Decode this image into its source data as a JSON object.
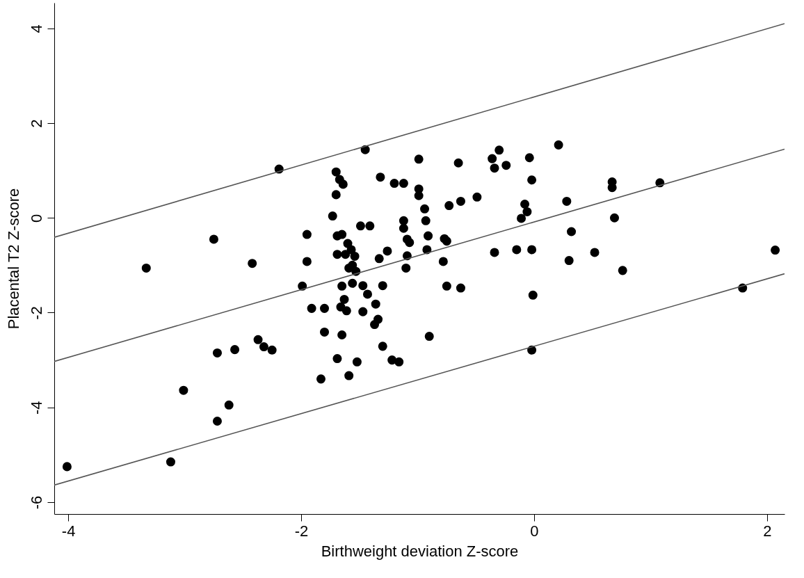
{
  "chart_data": {
    "type": "scatter",
    "xlabel": "Birthweight deviation Z-score",
    "ylabel": "Placental T2 Z-score",
    "xlim": [
      -4.12,
      2.15
    ],
    "ylim": [
      -6.25,
      4.54
    ],
    "xticks": [
      -4,
      -2,
      0,
      2
    ],
    "yticks": [
      -6,
      -4,
      -2,
      0,
      2,
      4
    ],
    "grid": false,
    "series": [
      {
        "color": "#000000",
        "marker": "circle",
        "x": [
          -4.01,
          -3.33,
          -3.12,
          -3.01,
          -2.75,
          -2.72,
          -2.72,
          -2.62,
          -2.57,
          -2.42,
          -2.37,
          -2.32,
          -2.25,
          -2.19,
          -1.99,
          -1.95,
          -1.95,
          -1.91,
          -1.83,
          -1.8,
          -1.8,
          -1.73,
          -1.7,
          -1.7,
          -1.69,
          -1.69,
          -1.69,
          -1.67,
          -1.65,
          -1.66,
          -1.65,
          -1.65,
          -1.64,
          -1.63,
          -1.62,
          -1.61,
          -1.6,
          -1.59,
          -1.59,
          -1.57,
          -1.56,
          -1.56,
          -1.53,
          -1.54,
          -1.52,
          -1.49,
          -1.47,
          -1.47,
          -1.45,
          -1.43,
          -1.41,
          -1.36,
          -1.34,
          -1.37,
          -1.32,
          -1.33,
          -1.3,
          -1.3,
          -1.26,
          -1.22,
          -1.2,
          -1.16,
          -1.12,
          -1.12,
          -1.12,
          -1.1,
          -1.09,
          -1.09,
          -1.07,
          -0.99,
          -0.99,
          -0.99,
          -0.94,
          -0.93,
          -0.92,
          -0.91,
          -0.9,
          -0.78,
          -0.77,
          -0.75,
          -0.75,
          -0.73,
          -0.65,
          -0.63,
          -0.63,
          -0.49,
          -0.36,
          -0.34,
          -0.34,
          -0.3,
          -0.24,
          -0.15,
          -0.11,
          -0.08,
          -0.06,
          -0.04,
          -0.02,
          -0.02,
          -0.01,
          -0.02,
          0.21,
          0.28,
          0.3,
          0.32,
          0.52,
          0.67,
          0.67,
          0.69,
          0.76,
          1.08,
          1.79,
          2.07
        ],
        "values": [
          -5.25,
          -1.06,
          -5.15,
          -3.64,
          -0.45,
          -2.85,
          -4.29,
          -3.95,
          -2.78,
          -0.96,
          -2.57,
          -2.72,
          -2.79,
          1.03,
          -1.44,
          -0.35,
          -0.92,
          -1.91,
          -3.4,
          -1.91,
          -2.41,
          0.04,
          0.97,
          0.49,
          -0.38,
          -0.77,
          -2.97,
          0.81,
          -0.35,
          -1.88,
          -1.44,
          -2.47,
          0.71,
          -1.72,
          -0.77,
          -1.96,
          -0.54,
          -1.06,
          -3.33,
          -0.67,
          -1.0,
          -1.38,
          -1.13,
          -0.81,
          -3.04,
          -0.17,
          -1.43,
          -1.98,
          1.44,
          -1.61,
          -0.17,
          -1.82,
          -2.14,
          -2.25,
          0.86,
          -0.86,
          -1.43,
          -2.71,
          -0.7,
          -3.0,
          0.73,
          -3.04,
          0.73,
          -0.06,
          -0.22,
          -1.06,
          -0.45,
          -0.8,
          -0.52,
          1.24,
          0.61,
          0.47,
          0.19,
          -0.06,
          -0.67,
          -0.38,
          -2.5,
          -0.92,
          -0.44,
          -0.49,
          -1.44,
          0.26,
          1.16,
          0.35,
          -1.48,
          0.44,
          1.25,
          1.05,
          -0.73,
          1.43,
          1.11,
          -0.67,
          -0.01,
          0.29,
          0.13,
          1.27,
          0.8,
          -0.67,
          -1.63,
          -2.79,
          1.54,
          0.35,
          -0.9,
          -0.29,
          -0.73,
          0.76,
          0.64,
          0.0,
          -1.11,
          0.74,
          -1.48,
          -0.68
        ]
      },
      {
        "type": "line",
        "marker": "none",
        "color": "#555555",
        "x": [
          -4.12,
          2.15
        ],
        "values": [
          -0.41,
          4.1
        ]
      },
      {
        "type": "line",
        "marker": "none",
        "color": "#555555",
        "x": [
          -4.12,
          2.15
        ],
        "values": [
          -3.03,
          1.45
        ]
      },
      {
        "type": "line",
        "marker": "none",
        "color": "#555555",
        "x": [
          -4.12,
          2.15
        ],
        "values": [
          -5.64,
          -1.18
        ]
      }
    ]
  }
}
